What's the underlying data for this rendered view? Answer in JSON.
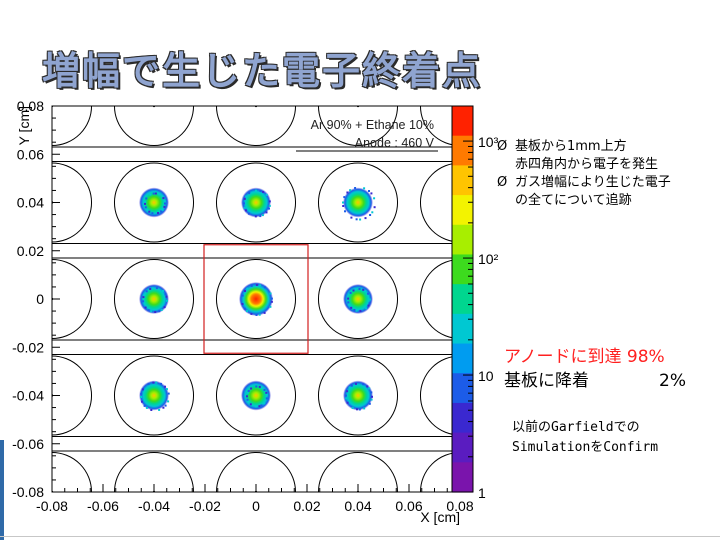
{
  "slide": {
    "title": "増幅で生じた電子終着点"
  },
  "bullets": [
    {
      "marker": "Ø",
      "lines": [
        "基板から1mm上方",
        "赤四角内から電子を発生"
      ]
    },
    {
      "marker": "Ø",
      "lines": [
        "ガス増幅により生じた電子",
        "の全てについて追跡"
      ]
    }
  ],
  "result": {
    "anode_label": "アノードに到達",
    "anode_value": "98%",
    "substrate_label": "基板に降着",
    "substrate_value": "2%"
  },
  "note": [
    "以前のGarfieldでの",
    "SimulationをConfirm"
  ],
  "chart_data": {
    "type": "heatmap",
    "xlabel": "X [cm]",
    "ylabel": "Y [cm]",
    "xlim": [
      -0.08,
      0.08
    ],
    "ylim": [
      -0.08,
      0.08
    ],
    "x_ticks": [
      "-0.08",
      "-0.06",
      "-0.04",
      "-0.02",
      "0",
      "0.02",
      "0.04",
      "0.06",
      "0.08"
    ],
    "y_ticks": [
      "0.08",
      "0.06",
      "0.04",
      "0.02",
      "0",
      "-0.02",
      "-0.04",
      "-0.06",
      "-0.08"
    ],
    "annotation": [
      "Ar 90% + Ethane 10%",
      "Anode : 460 V"
    ],
    "colorbar": {
      "scale": "log",
      "tick_labels": [
        "10³",
        "10²",
        "10",
        "1"
      ],
      "colors": [
        "#ff2200",
        "#ff7a00",
        "#ffc400",
        "#f3f300",
        "#a8ee00",
        "#3ddb1e",
        "#00d68f",
        "#00c8d2",
        "#009cf0",
        "#1c5ce8",
        "#3a28d0",
        "#5a1cc0",
        "#7a14ac"
      ]
    },
    "anode_points": [
      {
        "x": -0.04,
        "y": 0.04,
        "intensity": "high"
      },
      {
        "x": 0,
        "y": 0.04,
        "intensity": "high"
      },
      {
        "x": 0.04,
        "y": 0.04,
        "intensity": "high"
      },
      {
        "x": -0.04,
        "y": 0,
        "intensity": "high"
      },
      {
        "x": 0,
        "y": 0,
        "intensity": "peak"
      },
      {
        "x": 0.04,
        "y": 0,
        "intensity": "high"
      },
      {
        "x": -0.04,
        "y": -0.04,
        "intensity": "high"
      },
      {
        "x": 0,
        "y": -0.04,
        "intensity": "high"
      },
      {
        "x": 0.04,
        "y": -0.04,
        "intensity": "high"
      }
    ],
    "electrode_circles_x": [
      -0.08,
      -0.04,
      0,
      0.04,
      0.08
    ],
    "electrode_circles_y": [
      0.08,
      0.04,
      0,
      -0.04,
      -0.08
    ],
    "strip_y": [
      0.063,
      0.057,
      0.023,
      0.017,
      -0.017,
      -0.023,
      -0.057,
      -0.063
    ],
    "source_region": {
      "x": [
        -0.02,
        0.02
      ],
      "y": [
        -0.02,
        0.02
      ]
    }
  }
}
